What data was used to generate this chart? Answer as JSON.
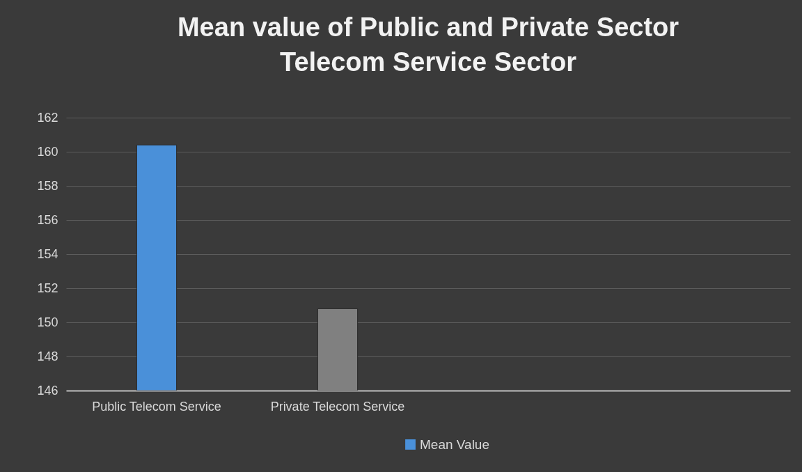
{
  "chart_data": {
    "type": "bar",
    "title": "Mean value of Public and Private Sector Telecom Service Sector",
    "categories": [
      "Public Telecom Service",
      "Private Telecom Service",
      null,
      null
    ],
    "series": [
      {
        "name": "Mean Value",
        "values": [
          160.4,
          150.8,
          null,
          null
        ]
      }
    ],
    "colors": [
      "#4a90d9",
      "#808080",
      null,
      null
    ],
    "ylim": [
      146,
      162
    ],
    "yticks": [
      146,
      148,
      150,
      152,
      154,
      156,
      158,
      160,
      162
    ],
    "grid": "y",
    "legend": "bottom"
  }
}
